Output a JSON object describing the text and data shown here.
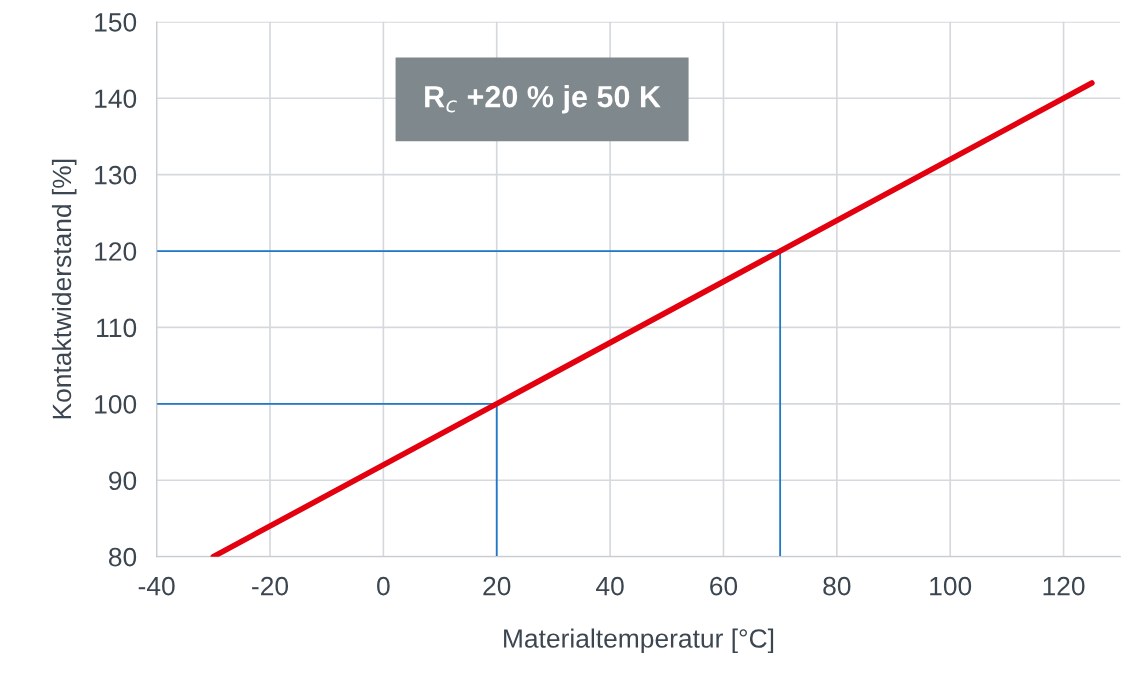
{
  "chart_data": {
    "type": "line",
    "xlabel": "Materialtemperatur [°C]",
    "ylabel": "Kontaktwiderstand [%]",
    "xlim": [
      -40,
      130
    ],
    "xticks": [
      -40,
      -20,
      0,
      20,
      40,
      60,
      80,
      100,
      120
    ],
    "ylim": [
      80,
      150
    ],
    "yticks": [
      80,
      90,
      100,
      110,
      120,
      130,
      140,
      150
    ],
    "grid": true,
    "annotations": [
      "R$_{c}$ +20 % je 50 K"
    ],
    "series": [
      {
        "color": "#e3000f",
        "x": [
          -30,
          125
        ],
        "values": [
          80,
          142
        ]
      },
      {
        "color": "#1f78c8",
        "x": [
          -40,
          20,
          20
        ],
        "values": [
          100,
          100,
          80
        ]
      },
      {
        "color": "#1f78c8",
        "x": [
          -40,
          70,
          70
        ],
        "values": [
          120,
          120,
          80
        ]
      }
    ]
  }
}
